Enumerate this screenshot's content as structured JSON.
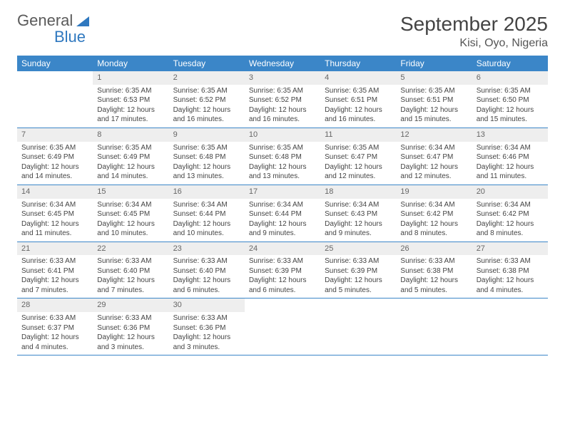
{
  "brand": {
    "part1": "General",
    "part2": "Blue"
  },
  "title": "September 2025",
  "location": "Kisi, Oyo, Nigeria",
  "colors": {
    "header_bg": "#3b86c8",
    "header_fg": "#ffffff",
    "daynum_bg": "#eeeeee",
    "daynum_fg": "#666666",
    "rule": "#3b86c8",
    "text": "#444444",
    "background": "#ffffff"
  },
  "typography": {
    "title_size": 28,
    "location_size": 16,
    "dayheader_size": 12,
    "body_size": 10
  },
  "weekdays": [
    "Sunday",
    "Monday",
    "Tuesday",
    "Wednesday",
    "Thursday",
    "Friday",
    "Saturday"
  ],
  "weeks": [
    [
      null,
      {
        "n": "1",
        "sr": "Sunrise: 6:35 AM",
        "ss": "Sunset: 6:53 PM",
        "d1": "Daylight: 12 hours",
        "d2": "and 17 minutes."
      },
      {
        "n": "2",
        "sr": "Sunrise: 6:35 AM",
        "ss": "Sunset: 6:52 PM",
        "d1": "Daylight: 12 hours",
        "d2": "and 16 minutes."
      },
      {
        "n": "3",
        "sr": "Sunrise: 6:35 AM",
        "ss": "Sunset: 6:52 PM",
        "d1": "Daylight: 12 hours",
        "d2": "and 16 minutes."
      },
      {
        "n": "4",
        "sr": "Sunrise: 6:35 AM",
        "ss": "Sunset: 6:51 PM",
        "d1": "Daylight: 12 hours",
        "d2": "and 16 minutes."
      },
      {
        "n": "5",
        "sr": "Sunrise: 6:35 AM",
        "ss": "Sunset: 6:51 PM",
        "d1": "Daylight: 12 hours",
        "d2": "and 15 minutes."
      },
      {
        "n": "6",
        "sr": "Sunrise: 6:35 AM",
        "ss": "Sunset: 6:50 PM",
        "d1": "Daylight: 12 hours",
        "d2": "and 15 minutes."
      }
    ],
    [
      {
        "n": "7",
        "sr": "Sunrise: 6:35 AM",
        "ss": "Sunset: 6:49 PM",
        "d1": "Daylight: 12 hours",
        "d2": "and 14 minutes."
      },
      {
        "n": "8",
        "sr": "Sunrise: 6:35 AM",
        "ss": "Sunset: 6:49 PM",
        "d1": "Daylight: 12 hours",
        "d2": "and 14 minutes."
      },
      {
        "n": "9",
        "sr": "Sunrise: 6:35 AM",
        "ss": "Sunset: 6:48 PM",
        "d1": "Daylight: 12 hours",
        "d2": "and 13 minutes."
      },
      {
        "n": "10",
        "sr": "Sunrise: 6:35 AM",
        "ss": "Sunset: 6:48 PM",
        "d1": "Daylight: 12 hours",
        "d2": "and 13 minutes."
      },
      {
        "n": "11",
        "sr": "Sunrise: 6:35 AM",
        "ss": "Sunset: 6:47 PM",
        "d1": "Daylight: 12 hours",
        "d2": "and 12 minutes."
      },
      {
        "n": "12",
        "sr": "Sunrise: 6:34 AM",
        "ss": "Sunset: 6:47 PM",
        "d1": "Daylight: 12 hours",
        "d2": "and 12 minutes."
      },
      {
        "n": "13",
        "sr": "Sunrise: 6:34 AM",
        "ss": "Sunset: 6:46 PM",
        "d1": "Daylight: 12 hours",
        "d2": "and 11 minutes."
      }
    ],
    [
      {
        "n": "14",
        "sr": "Sunrise: 6:34 AM",
        "ss": "Sunset: 6:45 PM",
        "d1": "Daylight: 12 hours",
        "d2": "and 11 minutes."
      },
      {
        "n": "15",
        "sr": "Sunrise: 6:34 AM",
        "ss": "Sunset: 6:45 PM",
        "d1": "Daylight: 12 hours",
        "d2": "and 10 minutes."
      },
      {
        "n": "16",
        "sr": "Sunrise: 6:34 AM",
        "ss": "Sunset: 6:44 PM",
        "d1": "Daylight: 12 hours",
        "d2": "and 10 minutes."
      },
      {
        "n": "17",
        "sr": "Sunrise: 6:34 AM",
        "ss": "Sunset: 6:44 PM",
        "d1": "Daylight: 12 hours",
        "d2": "and 9 minutes."
      },
      {
        "n": "18",
        "sr": "Sunrise: 6:34 AM",
        "ss": "Sunset: 6:43 PM",
        "d1": "Daylight: 12 hours",
        "d2": "and 9 minutes."
      },
      {
        "n": "19",
        "sr": "Sunrise: 6:34 AM",
        "ss": "Sunset: 6:42 PM",
        "d1": "Daylight: 12 hours",
        "d2": "and 8 minutes."
      },
      {
        "n": "20",
        "sr": "Sunrise: 6:34 AM",
        "ss": "Sunset: 6:42 PM",
        "d1": "Daylight: 12 hours",
        "d2": "and 8 minutes."
      }
    ],
    [
      {
        "n": "21",
        "sr": "Sunrise: 6:33 AM",
        "ss": "Sunset: 6:41 PM",
        "d1": "Daylight: 12 hours",
        "d2": "and 7 minutes."
      },
      {
        "n": "22",
        "sr": "Sunrise: 6:33 AM",
        "ss": "Sunset: 6:40 PM",
        "d1": "Daylight: 12 hours",
        "d2": "and 7 minutes."
      },
      {
        "n": "23",
        "sr": "Sunrise: 6:33 AM",
        "ss": "Sunset: 6:40 PM",
        "d1": "Daylight: 12 hours",
        "d2": "and 6 minutes."
      },
      {
        "n": "24",
        "sr": "Sunrise: 6:33 AM",
        "ss": "Sunset: 6:39 PM",
        "d1": "Daylight: 12 hours",
        "d2": "and 6 minutes."
      },
      {
        "n": "25",
        "sr": "Sunrise: 6:33 AM",
        "ss": "Sunset: 6:39 PM",
        "d1": "Daylight: 12 hours",
        "d2": "and 5 minutes."
      },
      {
        "n": "26",
        "sr": "Sunrise: 6:33 AM",
        "ss": "Sunset: 6:38 PM",
        "d1": "Daylight: 12 hours",
        "d2": "and 5 minutes."
      },
      {
        "n": "27",
        "sr": "Sunrise: 6:33 AM",
        "ss": "Sunset: 6:38 PM",
        "d1": "Daylight: 12 hours",
        "d2": "and 4 minutes."
      }
    ],
    [
      {
        "n": "28",
        "sr": "Sunrise: 6:33 AM",
        "ss": "Sunset: 6:37 PM",
        "d1": "Daylight: 12 hours",
        "d2": "and 4 minutes."
      },
      {
        "n": "29",
        "sr": "Sunrise: 6:33 AM",
        "ss": "Sunset: 6:36 PM",
        "d1": "Daylight: 12 hours",
        "d2": "and 3 minutes."
      },
      {
        "n": "30",
        "sr": "Sunrise: 6:33 AM",
        "ss": "Sunset: 6:36 PM",
        "d1": "Daylight: 12 hours",
        "d2": "and 3 minutes."
      },
      null,
      null,
      null,
      null
    ]
  ]
}
